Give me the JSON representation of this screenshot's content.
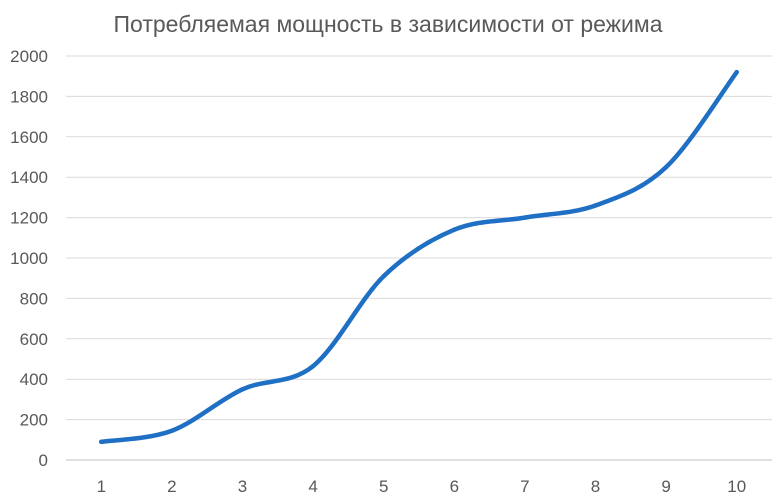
{
  "chart_data": {
    "type": "line",
    "title": "Потребляемая мощность в зависимости от режима",
    "xlabel": "",
    "ylabel": "",
    "categories": [
      "1",
      "2",
      "3",
      "4",
      "5",
      "6",
      "7",
      "8",
      "9",
      "10"
    ],
    "series": [
      {
        "values": [
          90,
          145,
          350,
          465,
          910,
          1140,
          1200,
          1260,
          1450,
          1920
        ],
        "color": "#1f6fc5"
      }
    ],
    "yticks": [
      "0",
      "200",
      "400",
      "600",
      "800",
      "1000",
      "1200",
      "1400",
      "1600",
      "1800",
      "2000"
    ],
    "ylim": [
      0,
      2000
    ],
    "smooth": true,
    "grid": "horizontal",
    "legend": "none"
  }
}
